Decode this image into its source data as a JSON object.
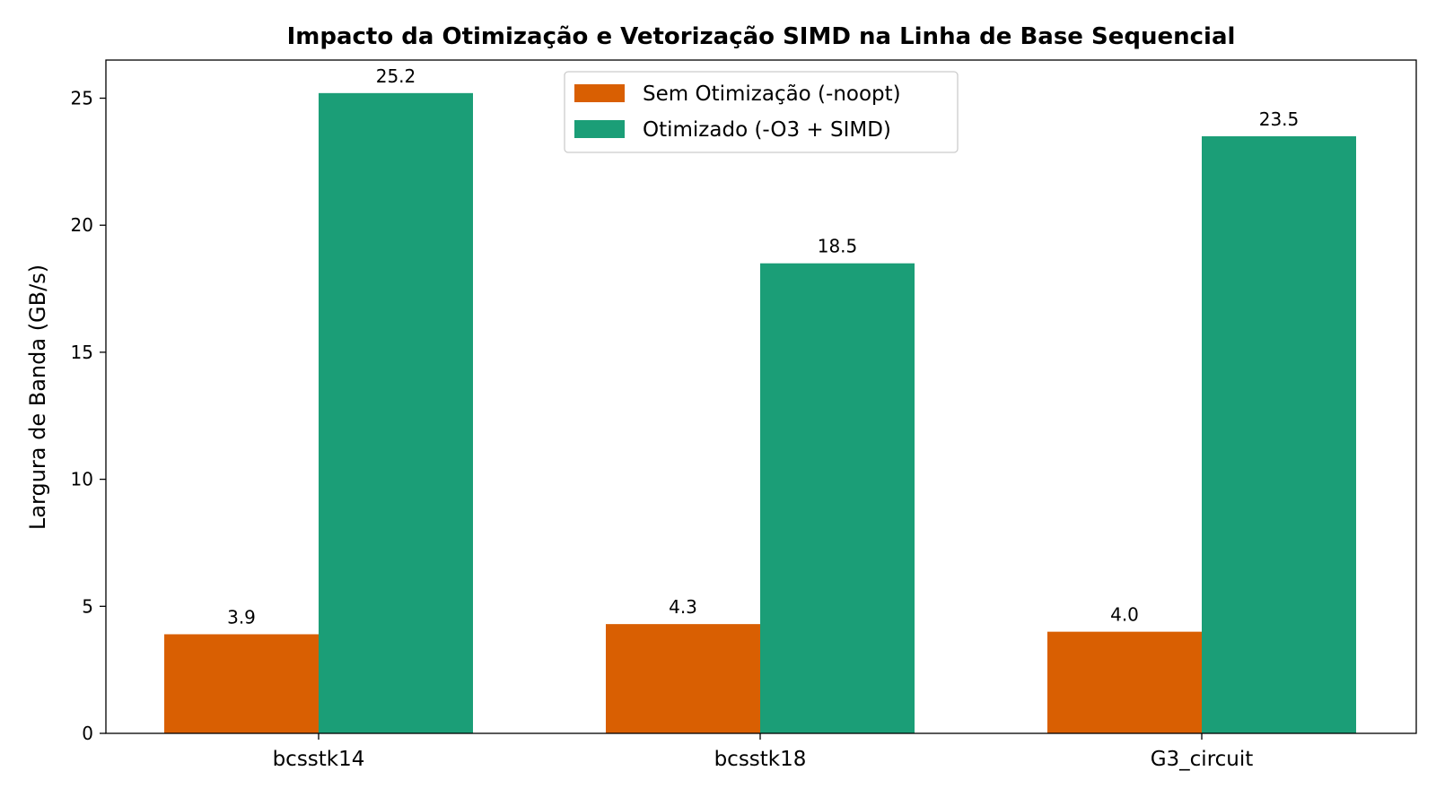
{
  "chart_data": {
    "type": "bar",
    "title": "Impacto da Otimização e Vetorização SIMD na Linha de Base Sequencial",
    "xlabel": "",
    "ylabel": "Largura de Banda (GB/s)",
    "ylim": [
      0,
      26.5
    ],
    "yticks": [
      0,
      5,
      10,
      15,
      20,
      25
    ],
    "categories": [
      "bcsstk14",
      "bcsstk18",
      "G3_circuit"
    ],
    "series": [
      {
        "name": "Sem Otimização (-noopt)",
        "color": "#d95f02",
        "values": [
          3.9,
          4.3,
          4.0
        ],
        "labels": [
          "3.9",
          "4.3",
          "4.0"
        ]
      },
      {
        "name": "Otimizado (-O3 + SIMD)",
        "color": "#1b9e77",
        "values": [
          25.2,
          18.5,
          23.5
        ],
        "labels": [
          "25.2",
          "18.5",
          "23.5"
        ]
      }
    ],
    "legend": "upper-center",
    "grid": false
  }
}
